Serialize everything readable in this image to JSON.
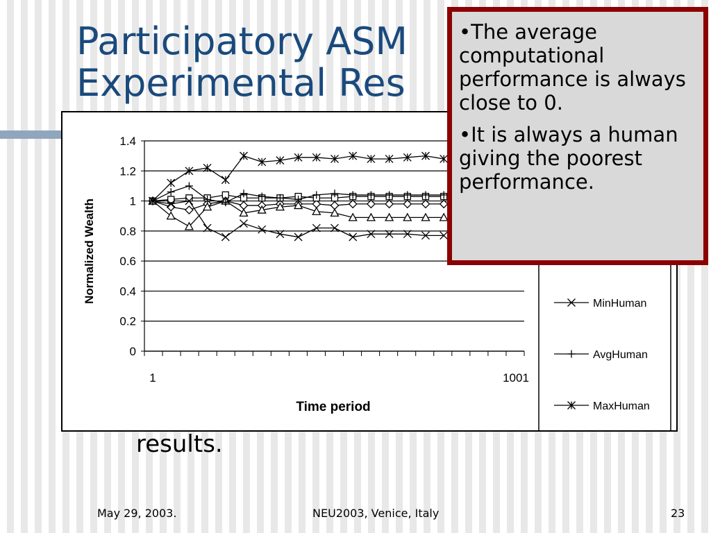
{
  "slide": {
    "title": "Participatory ASM\nExperimental Res",
    "body_text": "results."
  },
  "callout": {
    "bullets": [
      "•The average computational performance is always close to 0.",
      "•It is always a human giving the poorest performance."
    ]
  },
  "footer": {
    "date": "May 29, 2003.",
    "event": "NEU2003, Venice, Italy",
    "page": "23"
  },
  "colors": {
    "title": "#1a4a7c",
    "callout_border": "#8b0000",
    "callout_bg": "#d9d9d9",
    "band": "#8fa6bd"
  },
  "chart_data": {
    "type": "line",
    "xlabel": "Time period",
    "ylabel": "Normalized Wealth",
    "ylim": [
      0,
      1.4
    ],
    "yticks": [
      0,
      0.2,
      0.4,
      0.6,
      0.8,
      1,
      1.2,
      1.4
    ],
    "x_tick_labels": [
      "1",
      "1001"
    ],
    "grid": true,
    "legend_position": "right",
    "series": [
      {
        "marker": "diamond",
        "values": [
          1.0,
          0.96,
          0.94,
          0.98,
          1.0,
          0.97,
          0.97,
          0.98,
          0.98,
          0.98,
          0.97,
          0.98,
          0.98,
          0.98,
          0.98,
          0.98,
          0.98
        ]
      },
      {
        "marker": "square",
        "values": [
          1.0,
          1.01,
          1.02,
          1.02,
          1.04,
          1.02,
          1.02,
          1.02,
          1.03,
          1.02,
          1.02,
          1.03,
          1.03,
          1.03,
          1.03,
          1.03,
          1.03
        ]
      },
      {
        "marker": "triangle",
        "values": [
          1.0,
          0.9,
          0.83,
          0.96,
          1.0,
          0.92,
          0.94,
          0.96,
          0.97,
          0.93,
          0.92,
          0.89,
          0.89,
          0.89,
          0.89,
          0.89,
          0.89
        ]
      },
      {
        "name": "MinHuman",
        "marker": "x",
        "values": [
          1.0,
          0.98,
          1.0,
          0.82,
          0.76,
          0.85,
          0.81,
          0.78,
          0.76,
          0.82,
          0.82,
          0.76,
          0.78,
          0.78,
          0.78,
          0.77,
          0.77
        ]
      },
      {
        "name": "AvgHuman",
        "marker": "plus",
        "values": [
          1.0,
          1.06,
          1.1,
          1.01,
          0.99,
          1.05,
          1.03,
          1.02,
          1.01,
          1.04,
          1.05,
          1.04,
          1.04,
          1.04,
          1.04,
          1.04,
          1.04
        ]
      },
      {
        "name": "MaxHuman",
        "marker": "star",
        "values": [
          1.0,
          1.12,
          1.2,
          1.22,
          1.14,
          1.3,
          1.26,
          1.27,
          1.29,
          1.29,
          1.28,
          1.3,
          1.28,
          1.28,
          1.29,
          1.3,
          1.28
        ]
      }
    ]
  }
}
